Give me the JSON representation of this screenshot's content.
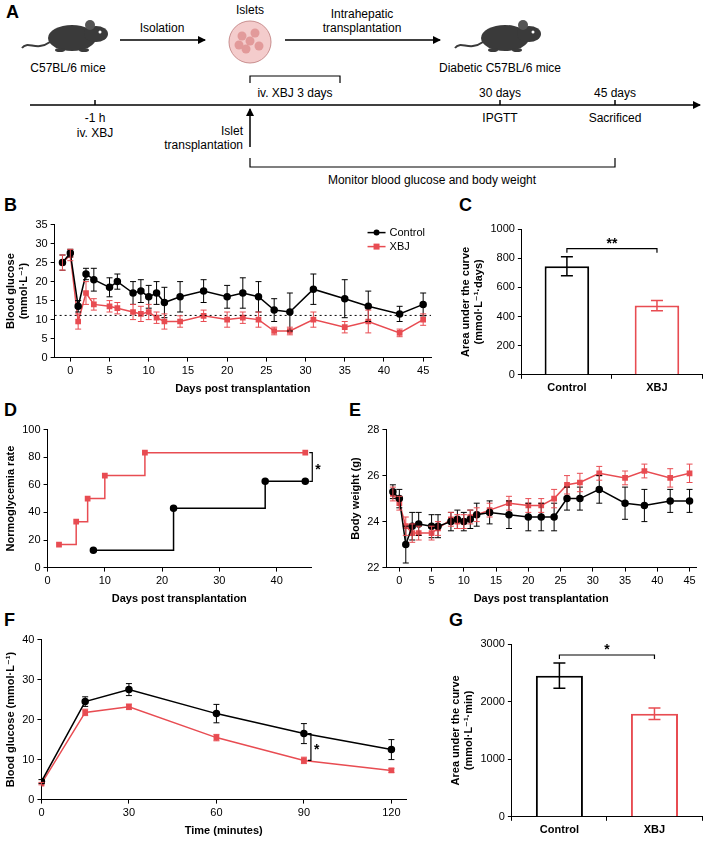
{
  "diagram": {
    "panel": "A",
    "donor": "C57BL/6 mice",
    "isolation": "Isolation",
    "islets": "Islets",
    "transplantation_route": "Intrahepatic transplantation",
    "recipient": "Diabetic C57BL/6 mice",
    "timeline": {
      "pretreatment": {
        "time": "-1 h",
        "label": "iv. XBJ"
      },
      "transplant": "Islet transplantation",
      "treatment": "iv. XBJ 3 days",
      "ipgtt": {
        "time": "30 days",
        "label": "IPGTT"
      },
      "end": {
        "time": "45 days",
        "label": "Sacrificed"
      },
      "monitoring": "Monitor blood glucose and body weight"
    }
  },
  "chart_data": [
    {
      "panel": "B",
      "type": "line",
      "x_label": "Days post transplantation",
      "y_label": "Blood glucose (mmol·L⁻¹)",
      "xlim": [
        -2,
        46
      ],
      "xticks": [
        0,
        5,
        10,
        15,
        20,
        25,
        30,
        35,
        40,
        45
      ],
      "ylim": [
        0,
        35
      ],
      "yticks": [
        0,
        5,
        10,
        15,
        20,
        25,
        30,
        35
      ],
      "grid": false,
      "legend": "top-right",
      "threshold": 11.1,
      "series": [
        {
          "name": "Control",
          "color": "#000000",
          "marker": "circle",
          "x": [
            -1,
            0,
            1,
            2,
            3,
            5,
            6,
            8,
            9,
            10,
            11,
            12,
            14,
            17,
            20,
            22,
            24,
            26,
            28,
            31,
            35,
            38,
            42,
            45
          ],
          "values": [
            25,
            27.5,
            13.5,
            22,
            20.5,
            18.5,
            20,
            17,
            17.5,
            16,
            17,
            14.5,
            16,
            17.5,
            16,
            17,
            16,
            12.5,
            12,
            18,
            15.5,
            13.5,
            11.5,
            14
          ],
          "errors": [
            2,
            1,
            1.5,
            1.5,
            3,
            2.5,
            2,
            3,
            3,
            3,
            3,
            4,
            4,
            3,
            3,
            4,
            4,
            3,
            5,
            4,
            5,
            4,
            2,
            3
          ]
        },
        {
          "name": "XBJ",
          "color": "#e84c52",
          "marker": "square",
          "x": [
            -1,
            0,
            1,
            2,
            3,
            5,
            6,
            8,
            9,
            10,
            11,
            12,
            14,
            17,
            20,
            22,
            24,
            26,
            28,
            31,
            35,
            38,
            42,
            45
          ],
          "values": [
            25,
            27,
            9.5,
            17,
            14,
            13.5,
            13,
            12,
            11.5,
            12,
            10.5,
            9.5,
            9.5,
            11,
            10,
            10.5,
            10,
            7,
            7,
            10,
            8,
            9.5,
            6.5,
            10
          ],
          "errors": [
            2,
            1.5,
            2,
            3,
            1.5,
            1.5,
            1.5,
            2,
            2,
            2,
            1.5,
            2,
            1.5,
            1.5,
            2,
            1.5,
            2,
            1,
            1,
            2,
            1.5,
            3,
            1,
            1.5
          ]
        }
      ]
    },
    {
      "panel": "C",
      "type": "bar",
      "y_label": "Area under the curve (mmol·L⁻¹·days)",
      "categories": [
        "Control",
        "XBJ"
      ],
      "values": [
        745,
        475
      ],
      "errors": [
        65,
        35
      ],
      "colors": [
        "#000000",
        "#e84c52"
      ],
      "ylim": [
        0,
        1000
      ],
      "yticks": [
        0,
        200,
        400,
        600,
        800,
        1000
      ],
      "grid": false,
      "significance": "**"
    },
    {
      "panel": "D",
      "type": "line",
      "line_style": "step",
      "x_label": "Days post transplantation",
      "y_label": "Normoglycemia rate",
      "xlim": [
        0,
        46
      ],
      "xticks": [
        0,
        10,
        20,
        30,
        40
      ],
      "ylim": [
        0,
        100
      ],
      "yticks": [
        0,
        20,
        40,
        60,
        80,
        100
      ],
      "grid": false,
      "significance": "*",
      "series": [
        {
          "color": "#e84c52",
          "marker": "square",
          "x": [
            2,
            5,
            7,
            10,
            17,
            45
          ],
          "values": [
            16.7,
            33.3,
            50,
            66.7,
            83.3,
            83.3
          ]
        },
        {
          "color": "#000000",
          "marker": "circle",
          "x": [
            8,
            22,
            38,
            45
          ],
          "values": [
            12.5,
            43,
            62.5,
            62.5
          ]
        }
      ]
    },
    {
      "panel": "E",
      "type": "line",
      "x_label": "Days post transplantation",
      "y_label": "Body weight (g)",
      "xlim": [
        -2,
        46
      ],
      "xticks": [
        0,
        5,
        10,
        15,
        20,
        25,
        30,
        35,
        40,
        45
      ],
      "ylim": [
        22,
        28
      ],
      "yticks": [
        22,
        24,
        26,
        28
      ],
      "grid": false,
      "series": [
        {
          "color": "#000000",
          "marker": "circle",
          "x": [
            -1,
            0,
            1,
            2,
            3,
            5,
            6,
            8,
            9,
            10,
            11,
            12,
            14,
            17,
            20,
            22,
            24,
            26,
            28,
            31,
            35,
            38,
            42,
            45
          ],
          "values": [
            25.3,
            25,
            23,
            23.8,
            23.9,
            23.8,
            23.8,
            24,
            24.1,
            24,
            24.1,
            24.3,
            24.4,
            24.3,
            24.2,
            24.2,
            24.2,
            25,
            25,
            25.4,
            24.8,
            24.7,
            24.9,
            24.9
          ],
          "errors": [
            0.3,
            0.4,
            0.8,
            0.6,
            0.5,
            0.5,
            0.5,
            0.4,
            0.4,
            0.4,
            0.4,
            0.5,
            0.5,
            0.6,
            0.6,
            0.6,
            0.6,
            0.5,
            0.5,
            0.6,
            0.7,
            0.7,
            0.5,
            0.5
          ]
        },
        {
          "color": "#e84c52",
          "marker": "square",
          "x": [
            -1,
            0,
            1,
            2,
            3,
            5,
            6,
            8,
            9,
            10,
            11,
            12,
            14,
            17,
            20,
            22,
            24,
            26,
            28,
            31,
            35,
            38,
            42,
            45
          ],
          "values": [
            25.2,
            24.8,
            23.8,
            23.5,
            23.5,
            23.5,
            23.7,
            24.1,
            24,
            24,
            24.2,
            24.3,
            24.5,
            24.8,
            24.7,
            24.7,
            25,
            25.6,
            25.7,
            26.1,
            25.9,
            26.2,
            25.9,
            26.1
          ],
          "errors": [
            0.3,
            0.3,
            0.4,
            0.4,
            0.3,
            0.3,
            0.3,
            0.3,
            0.3,
            0.3,
            0.3,
            0.3,
            0.3,
            0.3,
            0.3,
            0.3,
            0.4,
            0.4,
            0.4,
            0.3,
            0.3,
            0.3,
            0.4,
            0.4
          ]
        }
      ]
    },
    {
      "panel": "F",
      "type": "line",
      "x_label": "Time (minutes)",
      "y_label": "Blood glucose (mmol·L⁻¹)",
      "xlim": [
        0,
        125
      ],
      "xticks": [
        0,
        30,
        60,
        90,
        120
      ],
      "ylim": [
        0,
        40
      ],
      "yticks": [
        0,
        10,
        20,
        30,
        40
      ],
      "grid": false,
      "significance": {
        "text": "*",
        "x": 90
      },
      "series": [
        {
          "color": "#000000",
          "marker": "circle",
          "x": [
            0,
            15,
            30,
            60,
            90,
            120
          ],
          "values": [
            4.5,
            24.5,
            27.5,
            21.5,
            16.5,
            12.5
          ],
          "errors": [
            0.5,
            1.2,
            1.5,
            2.3,
            2.5,
            2.5
          ]
        },
        {
          "color": "#e84c52",
          "marker": "square",
          "x": [
            0,
            15,
            30,
            60,
            90,
            120
          ],
          "values": [
            4,
            21.8,
            23.2,
            15.5,
            9.8,
            7.3
          ],
          "errors": [
            0.3,
            0.8,
            0.7,
            0.8,
            0.8,
            0.5
          ]
        }
      ]
    },
    {
      "panel": "G",
      "type": "bar",
      "y_label": "Area under the curve (mmol·L⁻¹·min)",
      "categories": [
        "Control",
        "XBJ"
      ],
      "values": [
        2450,
        1790
      ],
      "errors": [
        220,
        100
      ],
      "colors": [
        "#000000",
        "#e84c52"
      ],
      "ylim": [
        0,
        3000
      ],
      "yticks": [
        0,
        1000,
        2000,
        3000
      ],
      "grid": false,
      "significance": "*"
    }
  ]
}
